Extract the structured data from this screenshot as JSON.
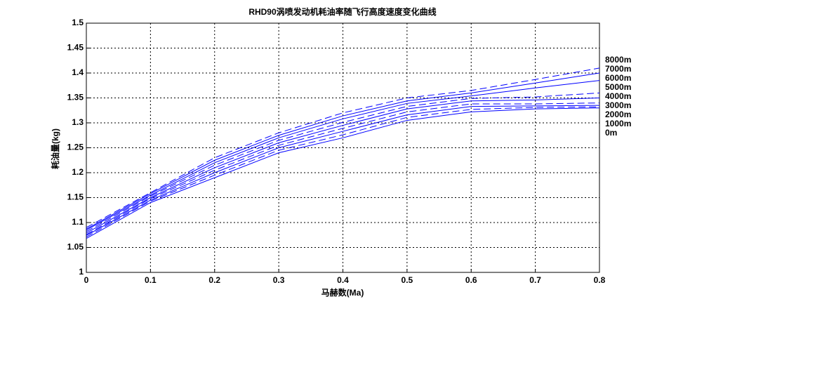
{
  "chart_data": {
    "type": "line",
    "title": "RHD90涡喷发动机耗油率随飞行高度速度变化曲线",
    "x_label": "马赫数(Ma)",
    "y_label": "耗油量(kg)",
    "x": [
      0,
      0.1,
      0.2,
      0.3,
      0.4,
      0.5,
      0.6,
      0.7,
      0.8
    ],
    "series": [
      {
        "name": "0m",
        "color": "#0000ff",
        "dash": false,
        "values": [
          1.068,
          1.14,
          1.19,
          1.24,
          1.27,
          1.305,
          1.322,
          1.328,
          1.33
        ]
      },
      {
        "name": "1000m",
        "color": "#0000ff",
        "dash": true,
        "values": [
          1.071,
          1.143,
          1.195,
          1.245,
          1.276,
          1.311,
          1.327,
          1.331,
          1.332
        ]
      },
      {
        "name": "2000m",
        "color": "#0000ff",
        "dash": false,
        "values": [
          1.074,
          1.145,
          1.2,
          1.25,
          1.283,
          1.316,
          1.333,
          1.334,
          1.335
        ]
      },
      {
        "name": "3000m",
        "color": "#0000ff",
        "dash": true,
        "values": [
          1.076,
          1.148,
          1.205,
          1.255,
          1.289,
          1.322,
          1.338,
          1.338,
          1.34
        ]
      },
      {
        "name": "4000m",
        "color": "#0000ff",
        "dash": false,
        "values": [
          1.079,
          1.15,
          1.21,
          1.26,
          1.295,
          1.328,
          1.344,
          1.346,
          1.35
        ]
      },
      {
        "name": "5000m",
        "color": "#0000ff",
        "dash": true,
        "values": [
          1.082,
          1.153,
          1.215,
          1.265,
          1.301,
          1.333,
          1.349,
          1.352,
          1.36
        ]
      },
      {
        "name": "6000m",
        "color": "#0000ff",
        "dash": false,
        "values": [
          1.085,
          1.155,
          1.22,
          1.27,
          1.308,
          1.339,
          1.354,
          1.37,
          1.385
        ]
      },
      {
        "name": "7000m",
        "color": "#0000ff",
        "dash": false,
        "values": [
          1.087,
          1.158,
          1.225,
          1.275,
          1.314,
          1.344,
          1.36,
          1.38,
          1.4
        ]
      },
      {
        "name": "8000m",
        "color": "#0000ff",
        "dash": true,
        "values": [
          1.09,
          1.16,
          1.23,
          1.28,
          1.32,
          1.35,
          1.365,
          1.387,
          1.41
        ]
      }
    ],
    "xlim": [
      0,
      0.8
    ],
    "xticks": [
      0,
      0.1,
      0.2,
      0.3,
      0.4,
      0.5,
      0.6,
      0.7,
      0.8
    ],
    "ylim": [
      1,
      1.5
    ],
    "yticks": [
      1,
      1.05,
      1.1,
      1.15,
      1.2,
      1.25,
      1.3,
      1.35,
      1.4,
      1.45,
      1.5
    ],
    "grid": true
  }
}
